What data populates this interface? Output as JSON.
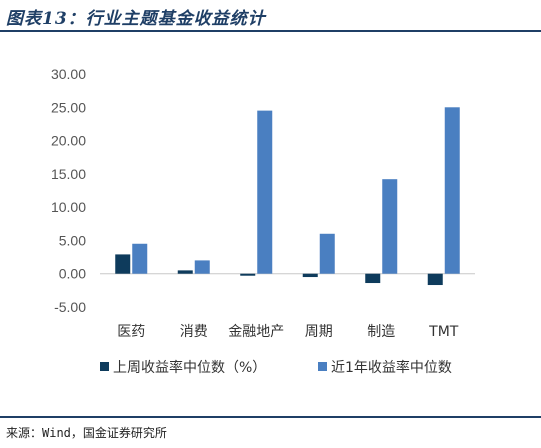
{
  "title": "图表13：行业主题基金收益统计",
  "source": "来源：Wind，国金证券研究所",
  "colors": {
    "series1": "#0e3b5c",
    "series2": "#4a7fc1",
    "rule": "#1f3f66"
  },
  "chart_data": {
    "type": "bar",
    "categories": [
      "医药",
      "消费",
      "金融地产",
      "周期",
      "制造",
      "TMT"
    ],
    "series": [
      {
        "name": "上周收益率中位数（%）",
        "values": [
          2.9,
          0.5,
          -0.3,
          -0.5,
          -1.4,
          -1.7
        ]
      },
      {
        "name": "近1年收益率中位数",
        "values": [
          4.5,
          2.0,
          24.5,
          6.0,
          14.2,
          25.0
        ]
      }
    ],
    "yticks": [
      "30.00",
      "25.00",
      "20.00",
      "15.00",
      "10.00",
      "5.00",
      "0.00",
      "-5.00"
    ],
    "ylim": [
      -5,
      30
    ],
    "legend_position": "bottom",
    "grid": false
  }
}
